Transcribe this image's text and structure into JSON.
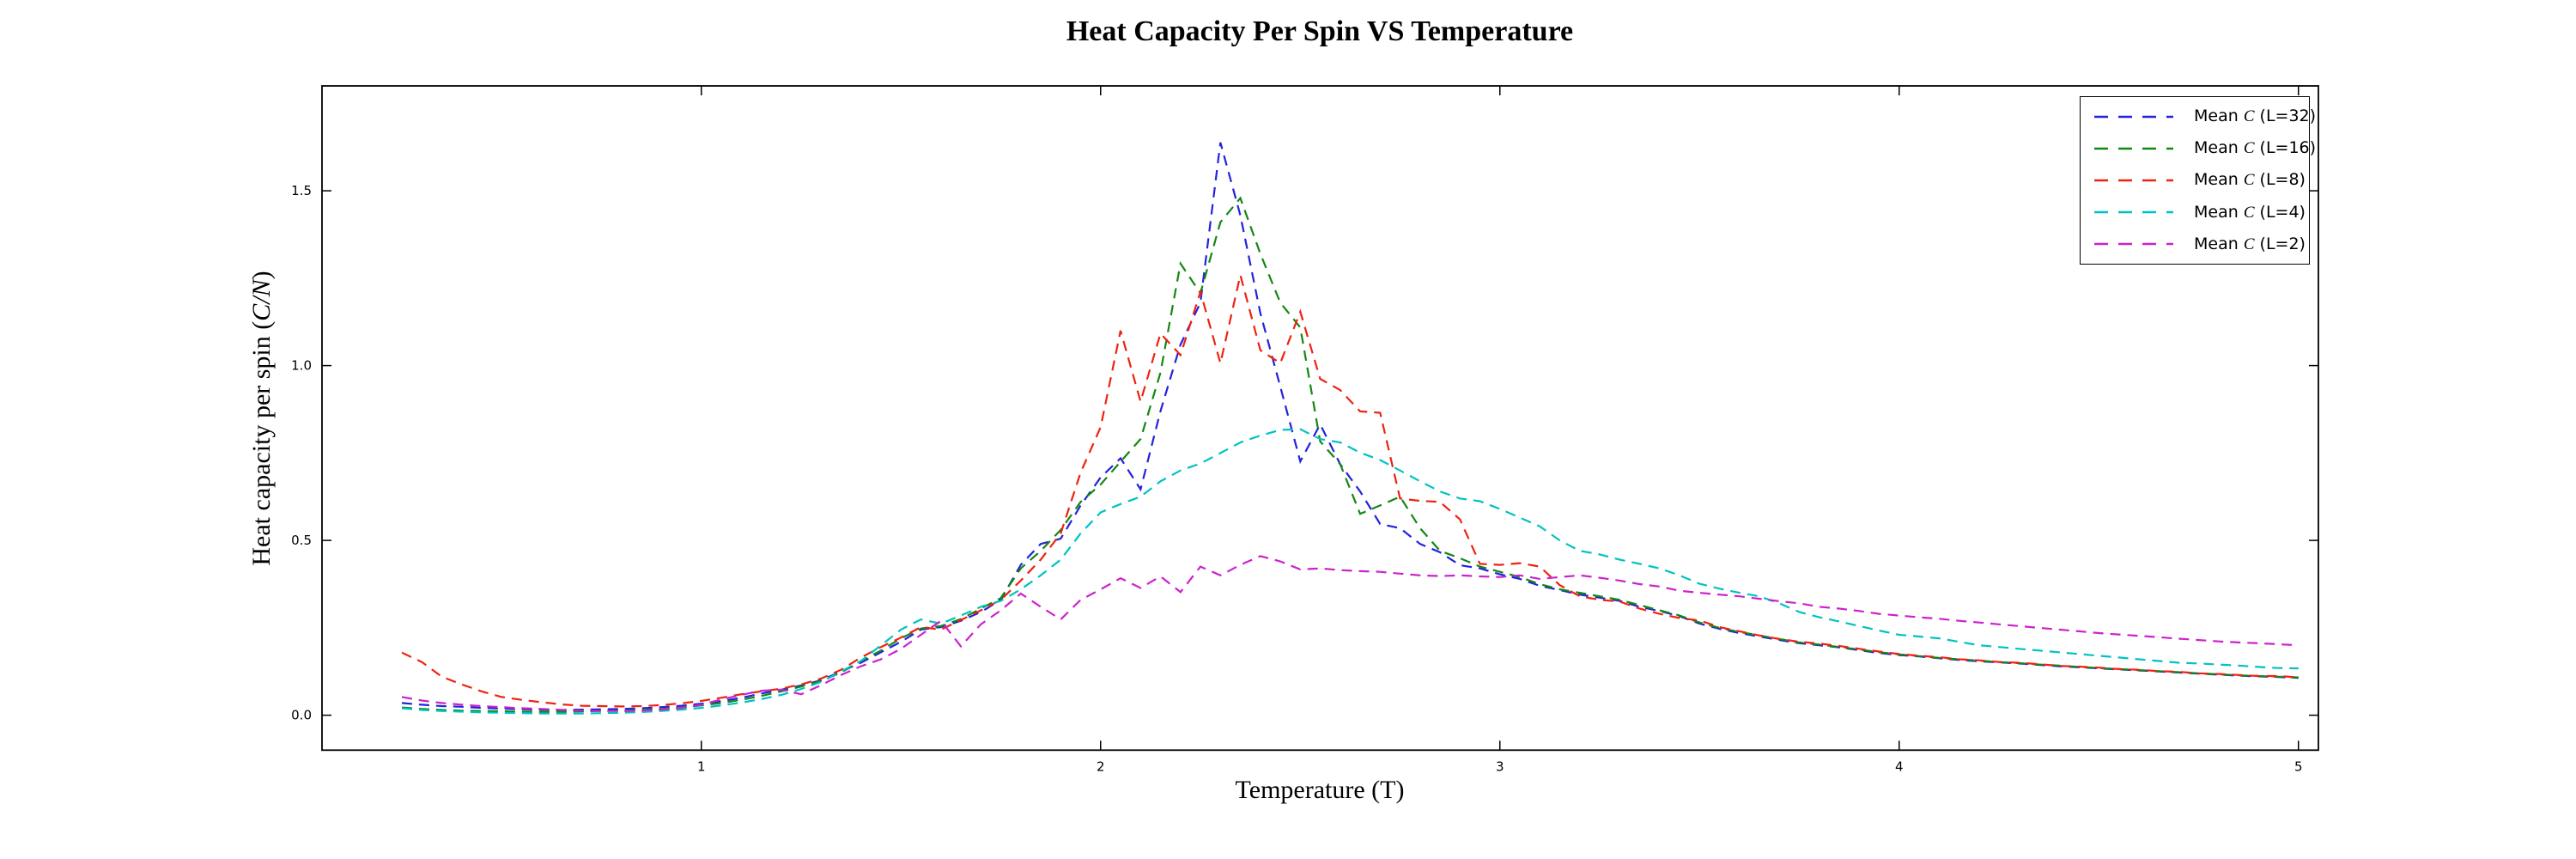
{
  "title": "Heat Capacity Per Spin VS Temperature",
  "axes": {
    "xlabel": "Temperature (T)",
    "ylabel_pre": "Heat capacity per spin (",
    "ylabel_math": "C/N",
    "ylabel_post": ")",
    "x_tick_labels": [
      "1",
      "2",
      "3",
      "4",
      "5"
    ],
    "x_tick_values": [
      1,
      2,
      3,
      4,
      5
    ],
    "y_tick_labels": [
      "0.0",
      "0.5",
      "1.0",
      "1.5"
    ],
    "y_tick_values": [
      0.0,
      0.5,
      1.0,
      1.5
    ]
  },
  "legend": {
    "entries": [
      {
        "label": "Mean C (L=32)",
        "label_pre": "Mean ",
        "label_math": "C",
        "label_post": " (L=32)",
        "color": "#2222dd"
      },
      {
        "label": "Mean C (L=16)",
        "label_pre": "Mean ",
        "label_math": "C",
        "label_post": " (L=16)",
        "color": "#118811"
      },
      {
        "label": "Mean C (L=8)",
        "label_pre": "Mean ",
        "label_math": "C",
        "label_post": " (L=8)",
        "color": "#ee2211"
      },
      {
        "label": "Mean C (L=4)",
        "label_pre": "Mean ",
        "label_math": "C",
        "label_post": " (L=4)",
        "color": "#00c2c2"
      },
      {
        "label": "Mean C (L=2)",
        "label_pre": "Mean ",
        "label_math": "C",
        "label_post": " (L=2)",
        "color": "#cc22cc"
      }
    ],
    "position": "upper right"
  },
  "chart_data": {
    "type": "line",
    "title": "Heat Capacity Per Spin VS Temperature",
    "xlabel": "Temperature (T)",
    "ylabel": "Heat capacity per spin (C/N)",
    "xlim": [
      0.05,
      5.05
    ],
    "ylim": [
      -0.1,
      1.8
    ],
    "grid": false,
    "line_style": "dashed",
    "legend_position": "upper right",
    "x": [
      0.25,
      0.3,
      0.35,
      0.4,
      0.45,
      0.5,
      0.55,
      0.6,
      0.65,
      0.7,
      0.75,
      0.8,
      0.85,
      0.9,
      0.95,
      1.0,
      1.05,
      1.1,
      1.15,
      1.2,
      1.25,
      1.3,
      1.35,
      1.4,
      1.45,
      1.5,
      1.55,
      1.6,
      1.65,
      1.7,
      1.75,
      1.8,
      1.85,
      1.9,
      1.95,
      2.0,
      2.05,
      2.1,
      2.15,
      2.2,
      2.25,
      2.3,
      2.35,
      2.4,
      2.45,
      2.5,
      2.55,
      2.6,
      2.65,
      2.7,
      2.75,
      2.8,
      2.85,
      2.9,
      2.95,
      3.0,
      3.05,
      3.1,
      3.15,
      3.2,
      3.25,
      3.3,
      3.35,
      3.4,
      3.45,
      3.5,
      3.55,
      3.6,
      3.65,
      3.7,
      3.75,
      3.8,
      3.85,
      3.9,
      3.95,
      4.0,
      4.05,
      4.1,
      4.15,
      4.2,
      4.25,
      4.3,
      4.35,
      4.4,
      4.45,
      4.5,
      4.55,
      4.6,
      4.65,
      4.7,
      4.75,
      4.8,
      4.85,
      4.9,
      4.95,
      5.0
    ],
    "series": [
      {
        "name": "Mean C (L=32)",
        "color": "#2222dd",
        "values": [
          0.035,
          0.03,
          0.026,
          0.024,
          0.021,
          0.019,
          0.017,
          0.016,
          0.015,
          0.016,
          0.017,
          0.018,
          0.02,
          0.023,
          0.027,
          0.033,
          0.04,
          0.05,
          0.062,
          0.073,
          0.085,
          0.1,
          0.125,
          0.15,
          0.18,
          0.21,
          0.245,
          0.252,
          0.27,
          0.295,
          0.33,
          0.43,
          0.49,
          0.505,
          0.6,
          0.68,
          0.735,
          0.646,
          0.87,
          1.06,
          1.18,
          1.638,
          1.43,
          1.15,
          0.94,
          0.726,
          0.832,
          0.718,
          0.64,
          0.547,
          0.535,
          0.49,
          0.466,
          0.429,
          0.42,
          0.403,
          0.39,
          0.37,
          0.358,
          0.345,
          0.336,
          0.327,
          0.31,
          0.298,
          0.283,
          0.262,
          0.247,
          0.235,
          0.225,
          0.215,
          0.206,
          0.2,
          0.194,
          0.186,
          0.178,
          0.172,
          0.168,
          0.163,
          0.158,
          0.154,
          0.151,
          0.148,
          0.144,
          0.14,
          0.137,
          0.134,
          0.131,
          0.128,
          0.125,
          0.122,
          0.119,
          0.116,
          0.113,
          0.111,
          0.109,
          0.107
        ]
      },
      {
        "name": "Mean C (L=16)",
        "color": "#118811",
        "values": [
          0.022,
          0.018,
          0.015,
          0.013,
          0.012,
          0.011,
          0.01,
          0.01,
          0.01,
          0.011,
          0.012,
          0.013,
          0.015,
          0.018,
          0.022,
          0.028,
          0.035,
          0.044,
          0.055,
          0.068,
          0.082,
          0.098,
          0.122,
          0.155,
          0.185,
          0.22,
          0.248,
          0.255,
          0.275,
          0.305,
          0.335,
          0.42,
          0.47,
          0.53,
          0.61,
          0.66,
          0.725,
          0.79,
          0.98,
          1.292,
          1.207,
          1.41,
          1.479,
          1.32,
          1.18,
          1.109,
          0.783,
          0.718,
          0.576,
          0.6,
          0.625,
          0.535,
          0.47,
          0.449,
          0.425,
          0.41,
          0.395,
          0.375,
          0.36,
          0.35,
          0.34,
          0.33,
          0.315,
          0.3,
          0.285,
          0.265,
          0.25,
          0.238,
          0.228,
          0.218,
          0.208,
          0.202,
          0.195,
          0.188,
          0.18,
          0.174,
          0.169,
          0.164,
          0.16,
          0.156,
          0.152,
          0.149,
          0.145,
          0.142,
          0.138,
          0.135,
          0.132,
          0.129,
          0.126,
          0.123,
          0.12,
          0.117,
          0.114,
          0.112,
          0.11,
          0.108
        ]
      },
      {
        "name": "Mean C (L=8)",
        "color": "#ee2211",
        "values": [
          0.179,
          0.152,
          0.11,
          0.088,
          0.068,
          0.052,
          0.044,
          0.037,
          0.031,
          0.027,
          0.026,
          0.025,
          0.026,
          0.029,
          0.034,
          0.041,
          0.05,
          0.06,
          0.068,
          0.076,
          0.088,
          0.105,
          0.13,
          0.165,
          0.195,
          0.222,
          0.252,
          0.245,
          0.272,
          0.3,
          0.33,
          0.385,
          0.445,
          0.52,
          0.694,
          0.824,
          1.1,
          0.897,
          1.092,
          1.03,
          1.211,
          1.007,
          1.259,
          1.044,
          1.007,
          1.154,
          0.962,
          0.93,
          0.869,
          0.865,
          0.62,
          0.613,
          0.61,
          0.56,
          0.433,
          0.43,
          0.435,
          0.425,
          0.372,
          0.34,
          0.33,
          0.325,
          0.305,
          0.29,
          0.278,
          0.271,
          0.252,
          0.24,
          0.228,
          0.218,
          0.21,
          0.205,
          0.198,
          0.19,
          0.182,
          0.175,
          0.17,
          0.166,
          0.16,
          0.157,
          0.152,
          0.15,
          0.146,
          0.141,
          0.139,
          0.136,
          0.132,
          0.13,
          0.126,
          0.124,
          0.12,
          0.118,
          0.115,
          0.112,
          0.112,
          0.108
        ]
      },
      {
        "name": "Mean C (L=4)",
        "color": "#00c2c2",
        "values": [
          0.02,
          0.015,
          0.012,
          0.01,
          0.008,
          0.007,
          0.006,
          0.005,
          0.005,
          0.005,
          0.006,
          0.007,
          0.009,
          0.012,
          0.016,
          0.021,
          0.028,
          0.036,
          0.046,
          0.058,
          0.075,
          0.095,
          0.125,
          0.155,
          0.2,
          0.245,
          0.274,
          0.262,
          0.285,
          0.31,
          0.327,
          0.36,
          0.4,
          0.445,
          0.52,
          0.58,
          0.604,
          0.625,
          0.669,
          0.7,
          0.72,
          0.75,
          0.78,
          0.8,
          0.816,
          0.818,
          0.79,
          0.78,
          0.751,
          0.73,
          0.7,
          0.669,
          0.64,
          0.62,
          0.612,
          0.59,
          0.565,
          0.54,
          0.5,
          0.47,
          0.46,
          0.445,
          0.433,
          0.42,
          0.4,
          0.376,
          0.362,
          0.35,
          0.34,
          0.32,
          0.295,
          0.28,
          0.268,
          0.255,
          0.242,
          0.23,
          0.225,
          0.22,
          0.21,
          0.2,
          0.195,
          0.19,
          0.185,
          0.18,
          0.175,
          0.17,
          0.165,
          0.16,
          0.155,
          0.15,
          0.148,
          0.145,
          0.142,
          0.138,
          0.135,
          0.134
        ]
      },
      {
        "name": "Mean C (L=2)",
        "color": "#cc22cc",
        "values": [
          0.052,
          0.042,
          0.035,
          0.03,
          0.026,
          0.023,
          0.02,
          0.018,
          0.015,
          0.013,
          0.012,
          0.012,
          0.013,
          0.016,
          0.021,
          0.03,
          0.045,
          0.058,
          0.07,
          0.073,
          0.06,
          0.086,
          0.115,
          0.14,
          0.16,
          0.19,
          0.23,
          0.27,
          0.197,
          0.26,
          0.3,
          0.348,
          0.31,
          0.274,
          0.33,
          0.36,
          0.392,
          0.364,
          0.397,
          0.352,
          0.425,
          0.4,
          0.43,
          0.455,
          0.44,
          0.417,
          0.42,
          0.415,
          0.412,
          0.41,
          0.405,
          0.4,
          0.398,
          0.4,
          0.397,
          0.395,
          0.4,
          0.39,
          0.395,
          0.4,
          0.393,
          0.385,
          0.375,
          0.368,
          0.356,
          0.35,
          0.345,
          0.34,
          0.333,
          0.326,
          0.32,
          0.31,
          0.305,
          0.298,
          0.29,
          0.285,
          0.28,
          0.276,
          0.27,
          0.265,
          0.26,
          0.255,
          0.25,
          0.245,
          0.24,
          0.235,
          0.231,
          0.227,
          0.223,
          0.219,
          0.215,
          0.211,
          0.208,
          0.206,
          0.203,
          0.2
        ]
      }
    ]
  }
}
